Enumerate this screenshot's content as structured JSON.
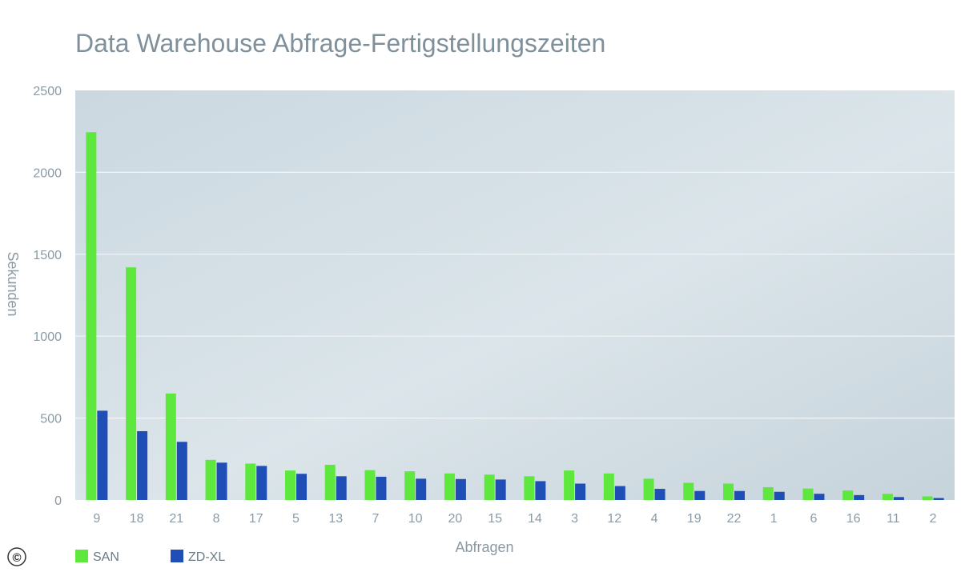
{
  "colors": {
    "san": "#5ee83d",
    "zdxl": "#1f4fb6",
    "title": "#7f909b",
    "axis_text": "#8a9aa5",
    "grid": "#f2f6f8"
  },
  "chart_data": {
    "type": "bar",
    "title": "Data Warehouse Abfrage-Fertigstellungszeiten",
    "xlabel": "Abfragen",
    "ylabel": "Sekunden",
    "ylim": [
      0,
      2500
    ],
    "yticks": [
      "0",
      "500",
      "1000",
      "1500",
      "2000",
      "2500"
    ],
    "grid": true,
    "legend_position": "bottom-left",
    "categories": [
      "9",
      "18",
      "21",
      "8",
      "17",
      "5",
      "13",
      "7",
      "10",
      "20",
      "15",
      "14",
      "3",
      "12",
      "4",
      "19",
      "22",
      "1",
      "6",
      "16",
      "11",
      "2"
    ],
    "series": [
      {
        "name": "SAN",
        "color": "#5ee83d",
        "values": [
          2245,
          1420,
          650,
          245,
          222,
          180,
          215,
          182,
          175,
          162,
          155,
          145,
          180,
          162,
          130,
          105,
          100,
          78,
          70,
          58,
          38,
          22
        ]
      },
      {
        "name": "ZD-XL",
        "color": "#1f4fb6",
        "values": [
          545,
          420,
          355,
          228,
          208,
          160,
          145,
          142,
          130,
          128,
          125,
          115,
          100,
          85,
          68,
          55,
          55,
          50,
          38,
          30,
          18,
          12
        ]
      }
    ]
  },
  "copyright_glyph": "©"
}
